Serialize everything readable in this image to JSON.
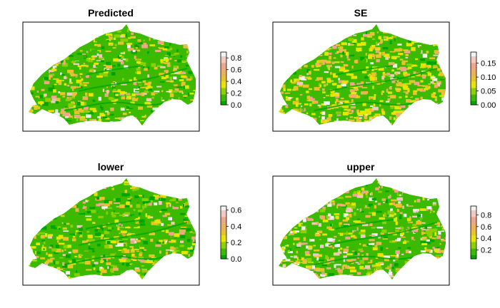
{
  "panels": [
    {
      "title": "Predicted",
      "legend": {
        "ticks": [
          "0.0",
          "0.2",
          "0.4",
          "0.6",
          "0.8"
        ],
        "min": 0.0,
        "max": 0.9
      },
      "fill_mix": {
        "green": 0.5,
        "yellow": 0.28,
        "pink": 0.22
      }
    },
    {
      "title": "SE",
      "legend": {
        "ticks": [
          "0.00",
          "0.05",
          "0.10",
          "0.15"
        ],
        "min": 0.0,
        "max": 0.19
      },
      "fill_mix": {
        "green": 0.22,
        "yellow": 0.5,
        "pink": 0.28
      }
    },
    {
      "title": "lower",
      "legend": {
        "ticks": [
          "0.0",
          "0.2",
          "0.4",
          "0.6"
        ],
        "min": 0.0,
        "max": 0.65
      },
      "fill_mix": {
        "green": 0.62,
        "yellow": 0.23,
        "pink": 0.15
      }
    },
    {
      "title": "upper",
      "legend": {
        "ticks": [
          "0.2",
          "0.4",
          "0.6",
          "0.8"
        ],
        "min": 0.05,
        "max": 0.95
      },
      "fill_mix": {
        "green": 0.38,
        "yellow": 0.22,
        "pink": 0.4
      }
    }
  ],
  "colors": {
    "ramp": [
      "#00a600",
      "#3cba00",
      "#8bd000",
      "#e6e600",
      "#e8c32e",
      "#ebb25e",
      "#eda78c",
      "#f0c9c0",
      "#f2f2f2"
    ],
    "frame": "#000000"
  }
}
